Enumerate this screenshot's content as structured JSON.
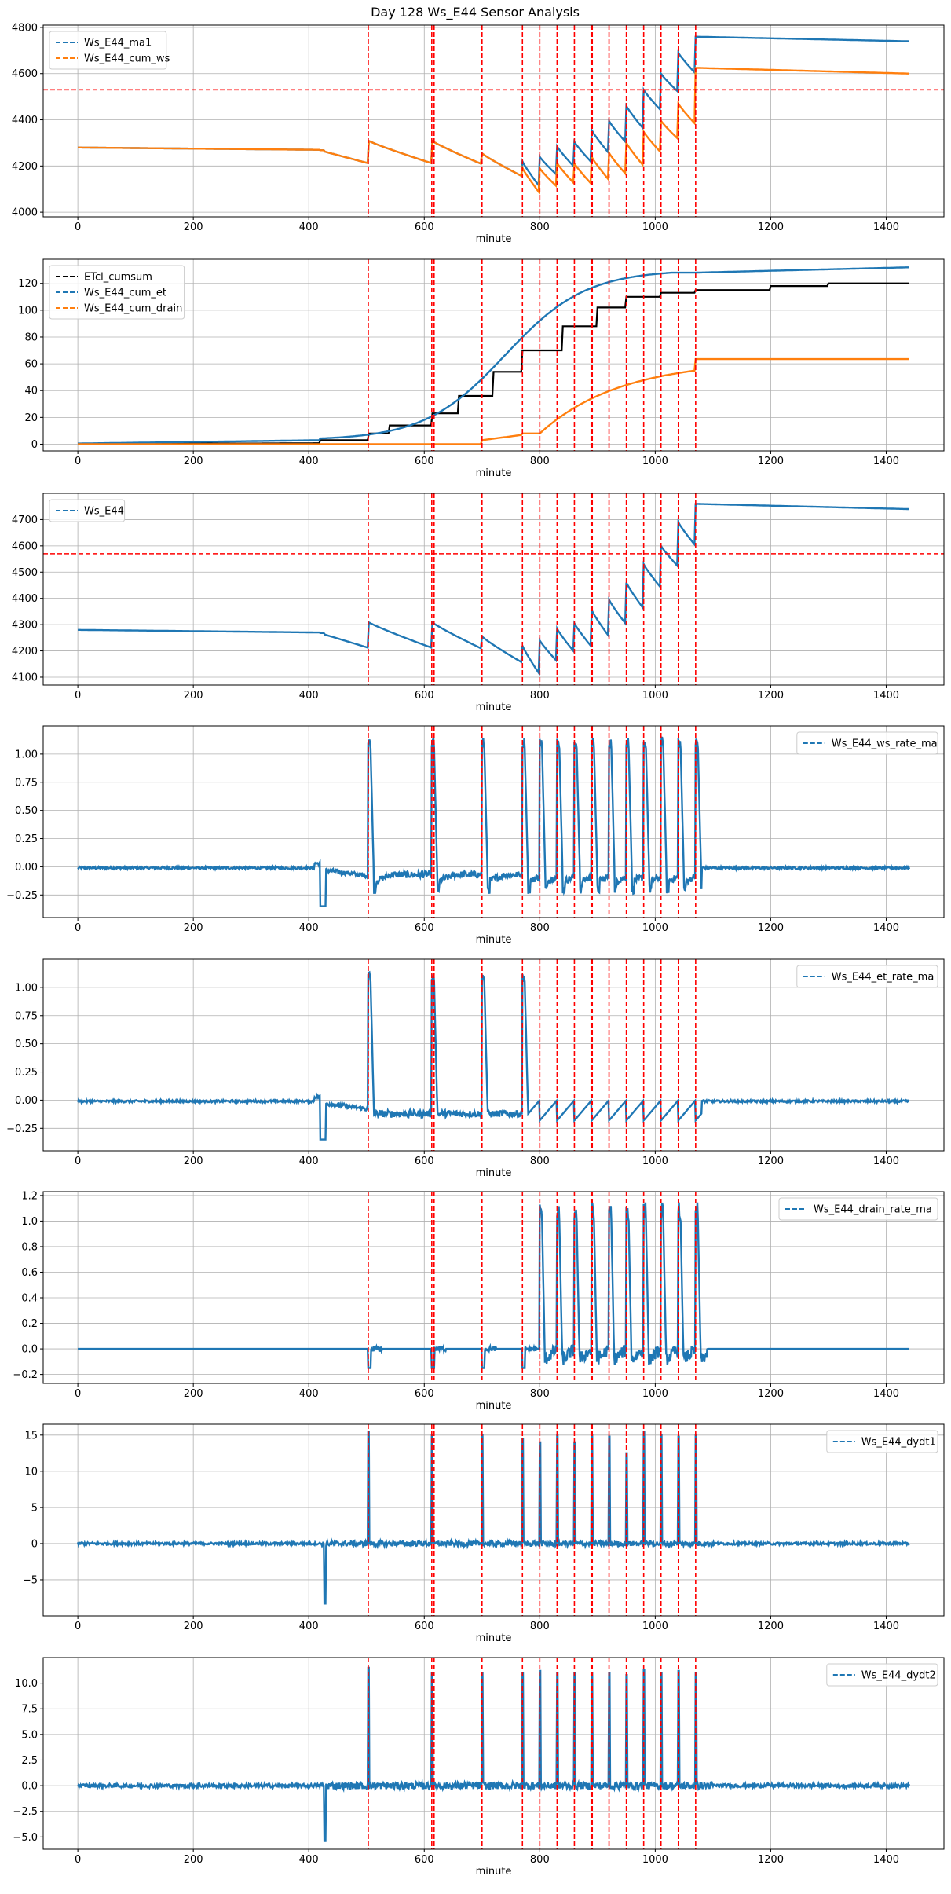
{
  "figure_title": "Day 128 Ws_E44 Sensor Analysis",
  "colors": {
    "blue": "#1f77b4",
    "orange": "#ff7f0e",
    "black": "#000000",
    "red": "#ff0000",
    "grid": "#b0b0b0"
  },
  "event_minutes": [
    503,
    613,
    617,
    700,
    770,
    800,
    830,
    860,
    889,
    891,
    920,
    950,
    980,
    1010,
    1040,
    1070
  ],
  "chart_data": [
    {
      "type": "line",
      "xlabel": "minute",
      "xlim": [
        -60,
        1500
      ],
      "xticks": [
        0,
        200,
        400,
        600,
        800,
        1000,
        1200,
        1400
      ],
      "ylim": [
        3980,
        4810
      ],
      "yticks": [
        4000,
        4200,
        4400,
        4600,
        4800
      ],
      "ytick_labels": [
        "4000",
        "4200",
        "4400",
        "4600",
        "4800"
      ],
      "hline": 4530,
      "legend_pos": "upper-left",
      "series": [
        {
          "name": "Ws_E44_ma1",
          "color": "#1f77b4",
          "kind": "ws"
        },
        {
          "name": "Ws_E44_cum_ws",
          "color": "#ff7f0e",
          "kind": "cumws"
        }
      ]
    },
    {
      "type": "line",
      "xlabel": "minute",
      "xlim": [
        -60,
        1500
      ],
      "xticks": [
        0,
        200,
        400,
        600,
        800,
        1000,
        1200,
        1400
      ],
      "ylim": [
        -5,
        138
      ],
      "yticks": [
        0,
        20,
        40,
        60,
        80,
        100,
        120
      ],
      "ytick_labels": [
        "0",
        "20",
        "40",
        "60",
        "80",
        "100",
        "120"
      ],
      "hline": null,
      "legend_pos": "upper-left",
      "series": [
        {
          "name": "ETcl_cumsum",
          "color": "#000000",
          "kind": "etcl"
        },
        {
          "name": "Ws_E44_cum_et",
          "color": "#1f77b4",
          "kind": "cumet"
        },
        {
          "name": "Ws_E44_cum_drain",
          "color": "#ff7f0e",
          "kind": "cumdrain"
        }
      ]
    },
    {
      "type": "line",
      "xlabel": "minute",
      "xlim": [
        -60,
        1500
      ],
      "xticks": [
        0,
        200,
        400,
        600,
        800,
        1000,
        1200,
        1400
      ],
      "ylim": [
        4070,
        4800
      ],
      "yticks": [
        4100,
        4200,
        4300,
        4400,
        4500,
        4600,
        4700
      ],
      "ytick_labels": [
        "4100",
        "4200",
        "4300",
        "4400",
        "4500",
        "4600",
        "4700"
      ],
      "hline": 4570,
      "legend_pos": "upper-left",
      "series": [
        {
          "name": "Ws_E44",
          "color": "#1f77b4",
          "kind": "ws"
        }
      ]
    },
    {
      "type": "line",
      "xlabel": "minute",
      "xlim": [
        -60,
        1500
      ],
      "xticks": [
        0,
        200,
        400,
        600,
        800,
        1000,
        1200,
        1400
      ],
      "ylim": [
        -0.45,
        1.25
      ],
      "yticks": [
        -0.25,
        0,
        0.25,
        0.5,
        0.75,
        1.0
      ],
      "ytick_labels": [
        "−0.25",
        "0.00",
        "0.25",
        "0.50",
        "0.75",
        "1.00"
      ],
      "hline": null,
      "legend_pos": "upper-right",
      "series": [
        {
          "name": "Ws_E44_ws_rate_ma",
          "color": "#1f77b4",
          "kind": "wsrate"
        }
      ]
    },
    {
      "type": "line",
      "xlabel": "minute",
      "xlim": [
        -60,
        1500
      ],
      "xticks": [
        0,
        200,
        400,
        600,
        800,
        1000,
        1200,
        1400
      ],
      "ylim": [
        -0.45,
        1.25
      ],
      "yticks": [
        -0.25,
        0,
        0.25,
        0.5,
        0.75,
        1.0
      ],
      "ytick_labels": [
        "−0.25",
        "0.00",
        "0.25",
        "0.50",
        "0.75",
        "1.00"
      ],
      "hline": null,
      "legend_pos": "upper-right",
      "series": [
        {
          "name": "Ws_E44_et_rate_ma",
          "color": "#1f77b4",
          "kind": "etrate"
        }
      ]
    },
    {
      "type": "line",
      "xlabel": "minute",
      "xlim": [
        -60,
        1500
      ],
      "xticks": [
        0,
        200,
        400,
        600,
        800,
        1000,
        1200,
        1400
      ],
      "ylim": [
        -0.27,
        1.23
      ],
      "yticks": [
        -0.2,
        0,
        0.2,
        0.4,
        0.6,
        0.8,
        1.0,
        1.2
      ],
      "ytick_labels": [
        "−0.2",
        "0.0",
        "0.2",
        "0.4",
        "0.6",
        "0.8",
        "1.0",
        "1.2"
      ],
      "hline": null,
      "legend_pos": "upper-right",
      "series": [
        {
          "name": "Ws_E44_drain_rate_ma",
          "color": "#1f77b4",
          "kind": "drainrate"
        }
      ]
    },
    {
      "type": "line",
      "xlabel": "minute",
      "xlim": [
        -60,
        1500
      ],
      "xticks": [
        0,
        200,
        400,
        600,
        800,
        1000,
        1200,
        1400
      ],
      "ylim": [
        -10,
        16.5
      ],
      "yticks": [
        -5,
        0,
        5,
        10,
        15
      ],
      "ytick_labels": [
        "−5",
        "0",
        "5",
        "10",
        "15"
      ],
      "hline": null,
      "legend_pos": "upper-right",
      "series": [
        {
          "name": "Ws_E44_dydt1",
          "color": "#1f77b4",
          "kind": "dydt1"
        }
      ]
    },
    {
      "type": "line",
      "xlabel": "minute",
      "xlim": [
        -60,
        1500
      ],
      "xticks": [
        0,
        200,
        400,
        600,
        800,
        1000,
        1200,
        1400
      ],
      "ylim": [
        -6.2,
        12.5
      ],
      "yticks": [
        -5,
        -2.5,
        0,
        2.5,
        5,
        7.5,
        10
      ],
      "ytick_labels": [
        "−5.0",
        "−2.5",
        "0.0",
        "2.5",
        "5.0",
        "7.5",
        "10.0"
      ],
      "hline": null,
      "legend_pos": "upper-right",
      "series": [
        {
          "name": "Ws_E44_dydt2",
          "color": "#1f77b4",
          "kind": "dydt2"
        }
      ]
    }
  ]
}
